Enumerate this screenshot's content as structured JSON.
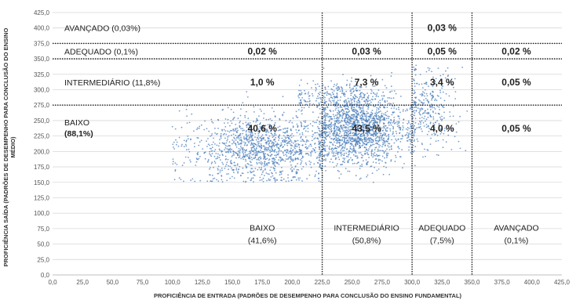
{
  "chart_data": {
    "type": "scatter",
    "xlabel": "PROFICIÊNCIA DE ENTRADA (PADRÕES DE DESEMPENHO PARA CONCLUSÃO DO ENSINO FUNDAMENTAL)",
    "ylabel_lines": [
      "PROFICIÊNCIA SAÍDA (PADRÕES DE DESEMPENHO PARA CONCLUSÃO DO ENSINO",
      "MÉDIO)"
    ],
    "xlim": [
      0,
      425
    ],
    "ylim": [
      0,
      425
    ],
    "x_ticks": [
      "0,0",
      "25,0",
      "50,0",
      "75,0",
      "100,0",
      "125,0",
      "150,0",
      "175,0",
      "200,0",
      "225,0",
      "250,0",
      "275,0",
      "300,0",
      "325,0",
      "350,0",
      "375,0",
      "400,0",
      "425,0"
    ],
    "y_ticks": [
      "0,0",
      "25,0",
      "50,0",
      "75,0",
      "100,0",
      "125,0",
      "150,0",
      "175,0",
      "200,0",
      "225,0",
      "250,0",
      "275,0",
      "300,0",
      "325,0",
      "350,0",
      "375,0",
      "400,0",
      "425,0"
    ],
    "point_color": "#4a7ebb",
    "vertical_cutoffs": [
      225,
      300,
      350
    ],
    "horizontal_cutoffs": [
      275,
      350,
      375
    ],
    "row_labels": [
      {
        "name": "AVANÇADO",
        "pct": "(0,03%)",
        "y": 400
      },
      {
        "name": "ADEQUADO",
        "pct": "(0,1%)",
        "y": 362
      },
      {
        "name": "INTERMEDIÁRIO",
        "pct": "(11,8%)",
        "y": 312
      },
      {
        "name": "BAIXO",
        "pct": "(88,1%)",
        "y": 237
      }
    ],
    "column_labels": [
      {
        "name": "BAIXO",
        "pct": "(41,6%)",
        "x": 175
      },
      {
        "name": "INTERMEDIÁRIO",
        "pct": "(50,8%)",
        "x": 262
      },
      {
        "name": "ADEQUADO",
        "pct": "(7,5%)",
        "x": 325
      },
      {
        "name": "AVANÇADO",
        "pct": "(0,1%)",
        "x": 387
      }
    ],
    "cells": [
      {
        "text": "0,03 %",
        "x": 325,
        "y": 400
      },
      {
        "text": "0,02 %",
        "x": 175,
        "y": 362
      },
      {
        "text": "0,03 %",
        "x": 262,
        "y": 362
      },
      {
        "text": "0,05 %",
        "x": 325,
        "y": 362
      },
      {
        "text": "0,02 %",
        "x": 387,
        "y": 362
      },
      {
        "text": "1,0 %",
        "x": 175,
        "y": 312
      },
      {
        "text": "7,3 %",
        "x": 262,
        "y": 312
      },
      {
        "text": "3,4 %",
        "x": 325,
        "y": 312
      },
      {
        "text": "0,05 %",
        "x": 387,
        "y": 312
      },
      {
        "text": "40,6 %",
        "x": 175,
        "y": 237
      },
      {
        "text": "43,5 %",
        "x": 262,
        "y": 237
      },
      {
        "text": "4,0 %",
        "x": 325,
        "y": 237
      },
      {
        "text": "0,05 %",
        "x": 387,
        "y": 237
      }
    ],
    "clusters": [
      {
        "cx": 175,
        "cy": 205,
        "sx": 30,
        "sy": 28,
        "count": 1300,
        "xmin": 100,
        "xmax": 225
      },
      {
        "cx": 255,
        "cy": 235,
        "sx": 20,
        "sy": 28,
        "count": 1600,
        "xmin": 225,
        "xmax": 300
      },
      {
        "cx": 312,
        "cy": 268,
        "sx": 12,
        "sy": 32,
        "count": 320,
        "xmin": 300,
        "xmax": 350
      },
      {
        "cx": 240,
        "cy": 288,
        "sx": 22,
        "sy": 14,
        "count": 260,
        "xmin": 205,
        "xmax": 300
      }
    ]
  }
}
